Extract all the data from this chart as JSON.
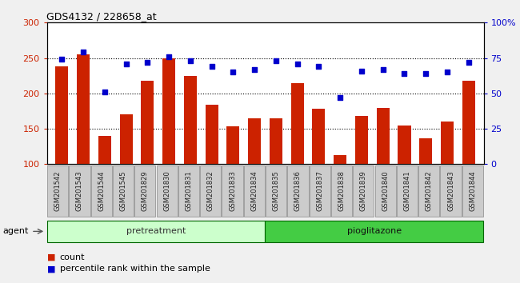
{
  "title": "GDS4132 / 228658_at",
  "categories": [
    "GSM201542",
    "GSM201543",
    "GSM201544",
    "GSM201545",
    "GSM201829",
    "GSM201830",
    "GSM201831",
    "GSM201832",
    "GSM201833",
    "GSM201834",
    "GSM201835",
    "GSM201836",
    "GSM201837",
    "GSM201838",
    "GSM201839",
    "GSM201840",
    "GSM201841",
    "GSM201842",
    "GSM201843",
    "GSM201844"
  ],
  "counts": [
    238,
    255,
    140,
    170,
    218,
    250,
    225,
    184,
    153,
    165,
    165,
    215,
    178,
    113,
    168,
    180,
    155,
    136,
    160,
    218
  ],
  "percentiles": [
    74,
    79,
    51,
    71,
    72,
    76,
    73,
    69,
    65,
    67,
    73,
    71,
    69,
    47,
    66,
    67,
    64,
    64,
    65,
    72
  ],
  "ylim_left": [
    100,
    300
  ],
  "ylim_right": [
    0,
    100
  ],
  "yticks_left": [
    100,
    150,
    200,
    250,
    300
  ],
  "yticks_right": [
    0,
    25,
    50,
    75,
    100
  ],
  "bar_color": "#cc2200",
  "dot_color": "#0000cc",
  "pretreatment_color": "#ccffcc",
  "pioglitazone_color": "#44cc44",
  "pretreatment_label": "pretreatment",
  "pioglitazone_label": "pioglitazone",
  "pretreatment_count": 10,
  "pioglitazone_count": 10,
  "agent_label": "agent",
  "legend_count_label": "count",
  "legend_pct_label": "percentile rank within the sample",
  "fig_bg_color": "#f0f0f0",
  "plot_bg_color": "#ffffff",
  "tick_bg_color": "#cccccc",
  "dotted_line_color": "#000000",
  "dotted_yticks": [
    150,
    200,
    250
  ]
}
